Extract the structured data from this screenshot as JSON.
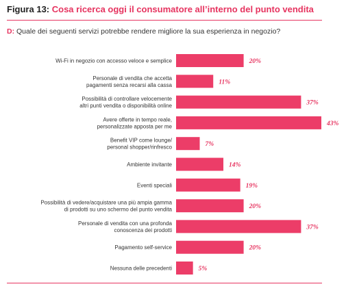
{
  "figure": {
    "number": "Figura 13:",
    "title": "Cosa ricerca oggi il consumatore all’interno del punto vendita"
  },
  "question": {
    "prefix": "D:",
    "text": "Quale dei seguenti servizi potrebbe rendere migliore la sua esperienza in negozio?"
  },
  "colors": {
    "accent": "#e6335f",
    "bar": "#ec3d68"
  },
  "chart_data": {
    "type": "bar",
    "orientation": "horizontal",
    "categories": [
      [
        "Wi-Fi in negozio con accesso veloce e semplice"
      ],
      [
        "Personale di vendita che accetta",
        "pagamenti senza recarsi alla cassa"
      ],
      [
        "Possibilità di controllare velocemente",
        "altri punti vendita o disponibilità online"
      ],
      [
        "Avere offerte in tempo reale,",
        "personalizzate apposta per me"
      ],
      [
        "Benefit VIP come lounge/",
        "personal shopper/rinfresco"
      ],
      [
        "Ambiente invitante"
      ],
      [
        "Eventi speciali"
      ],
      [
        "Possibilità di vedere/acquistare una più ampia gamma",
        "di prodotti su uno schermo del punto vendita"
      ],
      [
        "Personale di vendita con una profonda",
        "conoscenza dei prodotti"
      ],
      [
        "Pagamento self-service"
      ],
      [
        "Nessuna delle precedenti"
      ]
    ],
    "values": [
      20,
      11,
      37,
      43,
      7,
      14,
      19,
      20,
      37,
      20,
      5
    ],
    "value_labels": [
      "20%",
      "11%",
      "37%",
      "43%",
      "7%",
      "14%",
      "19%",
      "20%",
      "37%",
      "20%",
      "5%"
    ],
    "xlim": [
      0,
      43
    ],
    "grid": false,
    "legend": "none"
  }
}
